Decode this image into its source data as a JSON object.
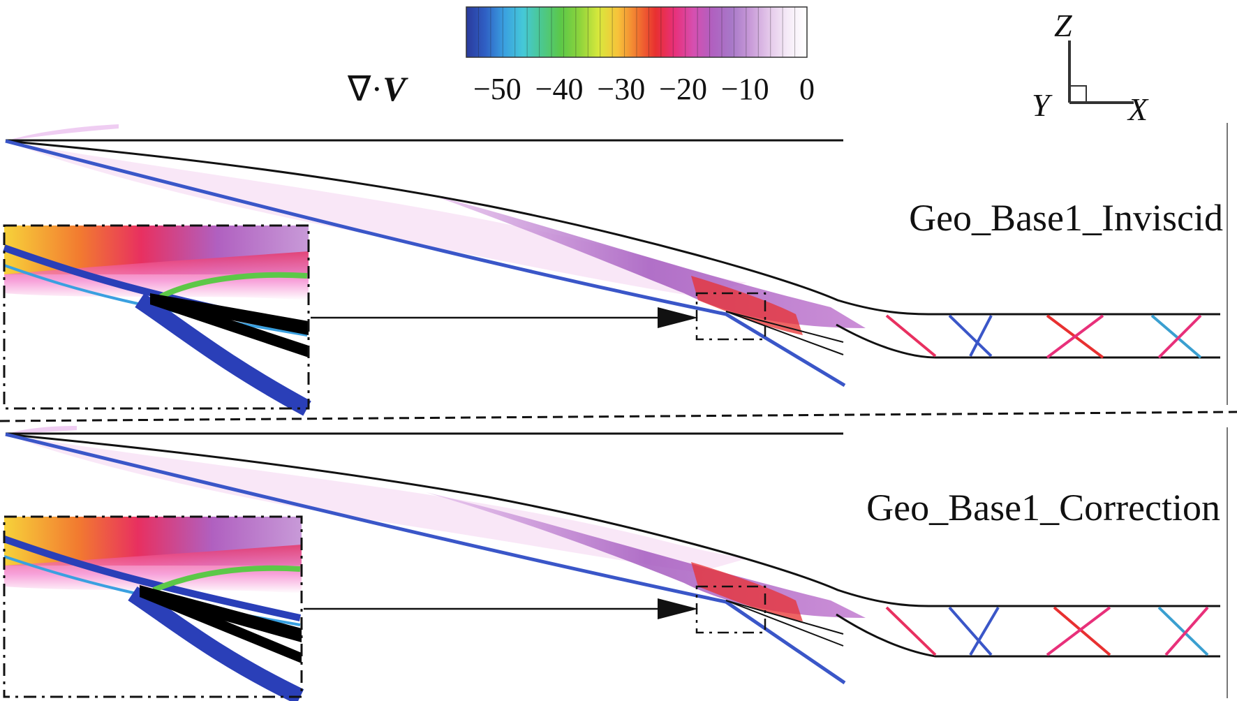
{
  "colorbar": {
    "title_symbol": "∇·",
    "title_var": "V",
    "ticks": [
      "−50",
      "−40",
      "−30",
      "−20",
      "−10",
      "0"
    ],
    "tick_values": [
      -50,
      -40,
      -30,
      -20,
      -10,
      0
    ],
    "range": [
      -55,
      0
    ],
    "colors": [
      "#2a3a9c",
      "#2f5fc4",
      "#3aa0e0",
      "#45c8d8",
      "#4cc88c",
      "#5cc848",
      "#8ed43c",
      "#d8e83c",
      "#f7c33a",
      "#f27a30",
      "#e83030",
      "#e8307a",
      "#d64fb0",
      "#b060c0",
      "#a878c8",
      "#c89ad8",
      "#e4c8ea",
      "#f6ecf8",
      "#ffffff"
    ]
  },
  "axes_triad": {
    "z": "Z",
    "y": "Y",
    "x": "X"
  },
  "panels": [
    {
      "label": "Geo_Base1_Inviscid"
    },
    {
      "label": "Geo_Base1_Correction"
    }
  ]
}
